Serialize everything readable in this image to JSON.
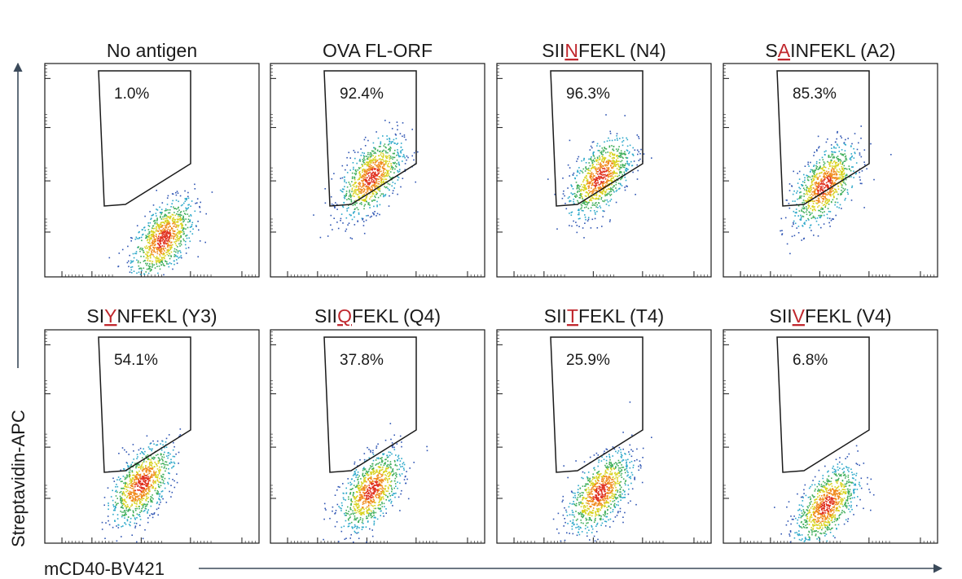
{
  "chart_data": {
    "type": "scatter",
    "subtype": "flow-cytometry-density-plots",
    "xlabel": "mCD40-BV421",
    "ylabel": "Streptavidin-APC",
    "colors": {
      "mutation": "#c0272d",
      "axis_arrow": "#3b4a5a",
      "frame": "#1a1a1a"
    },
    "panels": [
      {
        "title_parts": [
          "No antigen"
        ],
        "mut_index": -1,
        "gate_percent": "1.0%",
        "population_center": [
          0.55,
          0.18
        ]
      },
      {
        "title_parts": [
          "OVA FL-ORF"
        ],
        "mut_index": -1,
        "gate_percent": "92.4%",
        "population_center": [
          0.47,
          0.47
        ]
      },
      {
        "title_parts": [
          "SII",
          "N",
          "FEKL (N4)"
        ],
        "mut_index": 1,
        "gate_percent": "96.3%",
        "population_center": [
          0.48,
          0.47
        ]
      },
      {
        "title_parts": [
          "S",
          "A",
          "INFEKL (A2)"
        ],
        "mut_index": 1,
        "gate_percent": "85.3%",
        "population_center": [
          0.47,
          0.43
        ]
      },
      {
        "title_parts": [
          "SI",
          "Y",
          "NFEKL (Y3)"
        ],
        "mut_index": 1,
        "gate_percent": "54.1%",
        "population_center": [
          0.45,
          0.28
        ]
      },
      {
        "title_parts": [
          "SII",
          "Q",
          "FEKL (Q4)"
        ],
        "mut_index": 1,
        "gate_percent": "37.8%",
        "population_center": [
          0.47,
          0.25
        ]
      },
      {
        "title_parts": [
          "SII",
          "T",
          "FEKL (T4)"
        ],
        "mut_index": 1,
        "gate_percent": "25.9%",
        "population_center": [
          0.48,
          0.24
        ]
      },
      {
        "title_parts": [
          "SII",
          "V",
          "FEKL (V4)"
        ],
        "mut_index": 1,
        "gate_percent": "6.8%",
        "population_center": [
          0.48,
          0.18
        ]
      }
    ]
  }
}
